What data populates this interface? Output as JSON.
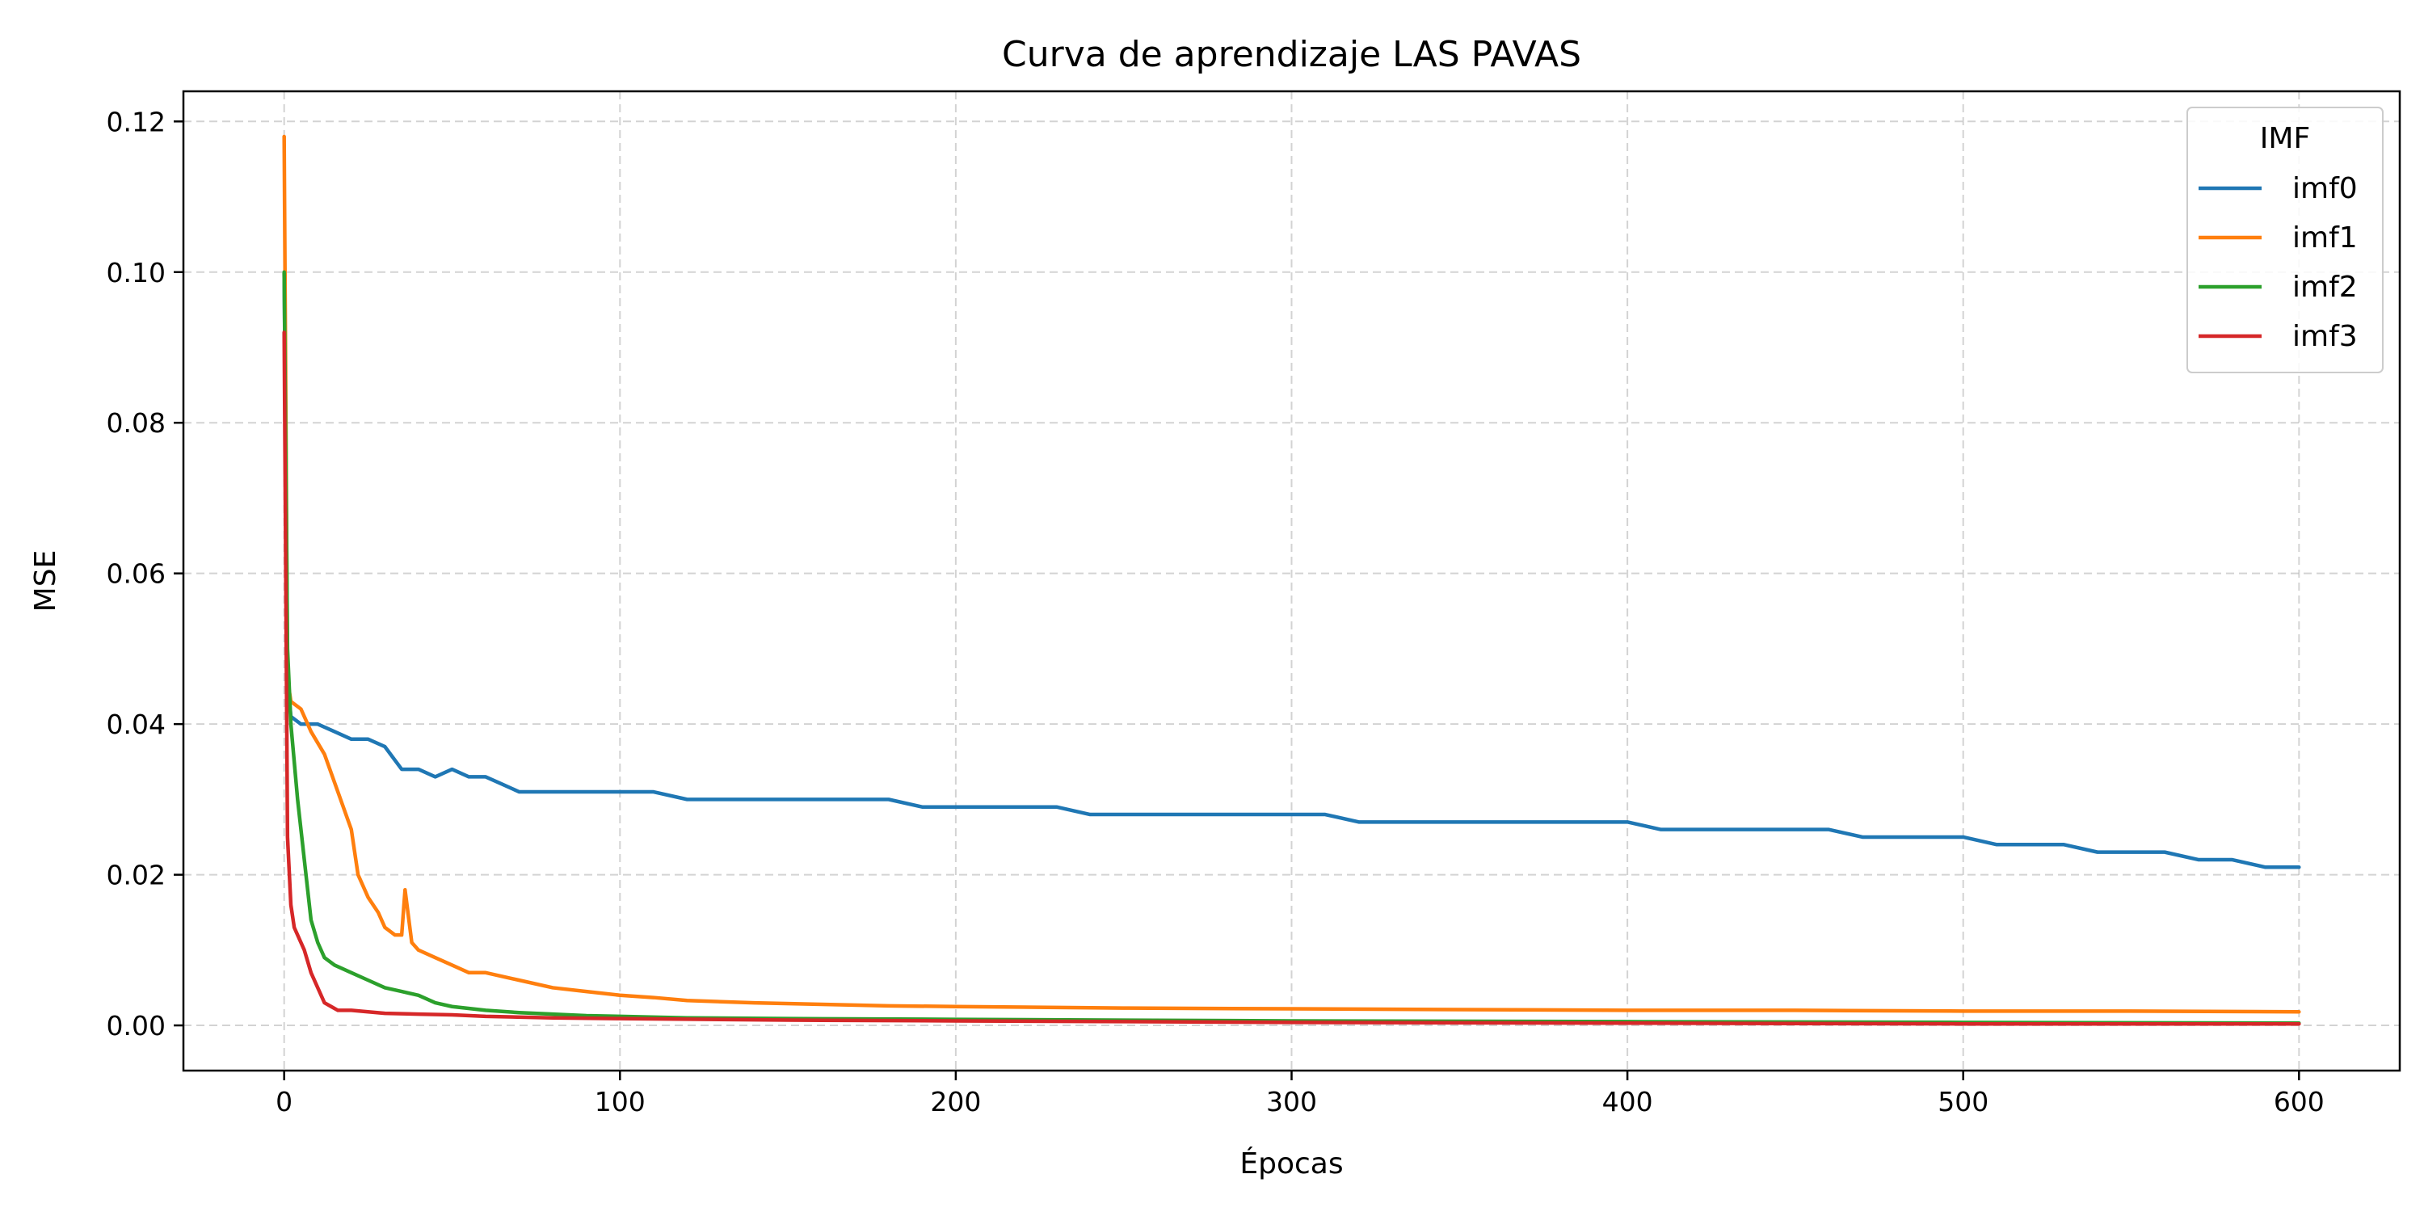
{
  "chart_data": {
    "type": "line",
    "title": "Curva de aprendizaje LAS PAVAS",
    "xlabel": "Épocas",
    "ylabel": "MSE",
    "xlim": [
      -30,
      630
    ],
    "ylim": [
      -0.006,
      0.124
    ],
    "xticks": [
      0,
      100,
      200,
      300,
      400,
      500,
      600
    ],
    "yticks": [
      0.0,
      0.02,
      0.04,
      0.06,
      0.08,
      0.1,
      0.12
    ],
    "ytick_labels": [
      "0.00",
      "0.02",
      "0.04",
      "0.06",
      "0.08",
      "0.10",
      "0.12"
    ],
    "grid": true,
    "legend": {
      "title": "IMF",
      "position": "top-right"
    },
    "series": [
      {
        "name": "imf0",
        "color": "#1f77b4",
        "x": [
          0,
          1,
          2,
          5,
          10,
          15,
          20,
          25,
          30,
          35,
          40,
          45,
          50,
          55,
          60,
          65,
          70,
          80,
          90,
          100,
          110,
          120,
          130,
          140,
          150,
          160,
          170,
          180,
          190,
          200,
          210,
          220,
          230,
          240,
          250,
          260,
          270,
          280,
          290,
          300,
          310,
          320,
          330,
          340,
          350,
          360,
          370,
          380,
          390,
          400,
          410,
          420,
          430,
          440,
          450,
          460,
          470,
          480,
          490,
          500,
          510,
          520,
          530,
          540,
          550,
          560,
          570,
          580,
          590,
          600
        ],
        "y": [
          0.1,
          0.046,
          0.041,
          0.04,
          0.04,
          0.039,
          0.038,
          0.038,
          0.037,
          0.034,
          0.034,
          0.033,
          0.034,
          0.033,
          0.033,
          0.032,
          0.031,
          0.031,
          0.031,
          0.031,
          0.031,
          0.03,
          0.03,
          0.03,
          0.03,
          0.03,
          0.03,
          0.03,
          0.029,
          0.029,
          0.029,
          0.029,
          0.029,
          0.028,
          0.028,
          0.028,
          0.028,
          0.028,
          0.028,
          0.028,
          0.028,
          0.027,
          0.027,
          0.027,
          0.027,
          0.027,
          0.027,
          0.027,
          0.027,
          0.027,
          0.026,
          0.026,
          0.026,
          0.026,
          0.026,
          0.026,
          0.025,
          0.025,
          0.025,
          0.025,
          0.024,
          0.024,
          0.024,
          0.023,
          0.023,
          0.023,
          0.022,
          0.022,
          0.021,
          0.021
        ]
      },
      {
        "name": "imf1",
        "color": "#ff7f0e",
        "x": [
          0,
          1,
          2,
          5,
          8,
          12,
          16,
          20,
          22,
          25,
          28,
          30,
          33,
          35,
          36,
          38,
          40,
          45,
          50,
          55,
          60,
          70,
          80,
          90,
          100,
          110,
          120,
          140,
          160,
          180,
          200,
          250,
          300,
          350,
          400,
          450,
          500,
          550,
          600
        ],
        "y": [
          0.118,
          0.046,
          0.043,
          0.042,
          0.039,
          0.036,
          0.031,
          0.026,
          0.02,
          0.017,
          0.015,
          0.013,
          0.012,
          0.012,
          0.018,
          0.011,
          0.01,
          0.009,
          0.008,
          0.007,
          0.007,
          0.006,
          0.005,
          0.0045,
          0.004,
          0.0037,
          0.0033,
          0.003,
          0.0028,
          0.0026,
          0.0025,
          0.0023,
          0.0022,
          0.0021,
          0.002,
          0.002,
          0.0019,
          0.0019,
          0.0018
        ]
      },
      {
        "name": "imf2",
        "color": "#2ca02c",
        "x": [
          0,
          1,
          2,
          3,
          4,
          5,
          6,
          7,
          8,
          10,
          12,
          15,
          20,
          25,
          30,
          35,
          40,
          45,
          50,
          60,
          70,
          80,
          90,
          100,
          120,
          150,
          200,
          300,
          400,
          500,
          600
        ],
        "y": [
          0.1,
          0.05,
          0.04,
          0.035,
          0.03,
          0.026,
          0.022,
          0.018,
          0.014,
          0.011,
          0.009,
          0.008,
          0.007,
          0.006,
          0.005,
          0.0045,
          0.004,
          0.003,
          0.0025,
          0.002,
          0.0017,
          0.0015,
          0.0013,
          0.0012,
          0.001,
          0.0009,
          0.0008,
          0.0006,
          0.0005,
          0.0004,
          0.0003
        ]
      },
      {
        "name": "imf3",
        "color": "#d62728",
        "x": [
          0,
          1,
          2,
          3,
          4,
          6,
          8,
          10,
          12,
          14,
          16,
          20,
          25,
          30,
          40,
          50,
          60,
          80,
          100,
          150,
          200,
          300,
          400,
          500,
          600
        ],
        "y": [
          0.092,
          0.025,
          0.016,
          0.013,
          0.012,
          0.01,
          0.007,
          0.005,
          0.003,
          0.0025,
          0.002,
          0.002,
          0.0018,
          0.0016,
          0.0015,
          0.0014,
          0.0012,
          0.001,
          0.0009,
          0.0007,
          0.0006,
          0.0004,
          0.0003,
          0.0002,
          0.0002
        ]
      }
    ]
  }
}
